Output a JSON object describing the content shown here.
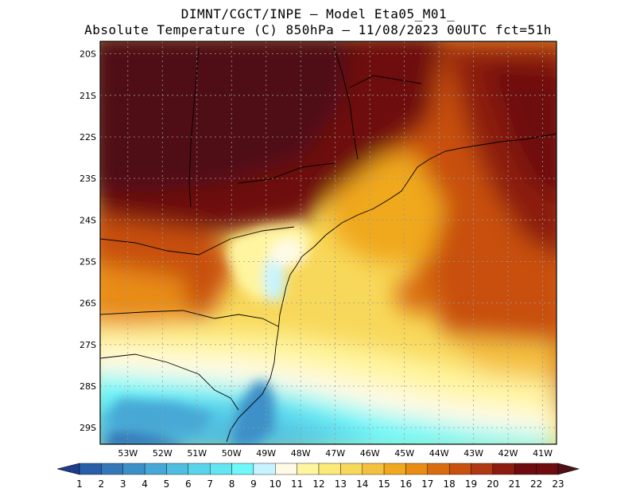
{
  "header": {
    "line1": "DIMNT/CGCT/INPE –  Model Eta05_M01_",
    "line2": "Absolute Temperature (C) 850hPa –  11/08/2023 00UTC fct=51h"
  },
  "axes": {
    "lat_labels": [
      "20S",
      "21S",
      "22S",
      "23S",
      "24S",
      "25S",
      "26S",
      "27S",
      "28S",
      "29S"
    ],
    "lat_values": [
      -20,
      -21,
      -22,
      -23,
      -24,
      -25,
      -26,
      -27,
      -28,
      -29
    ],
    "lon_labels": [
      "53W",
      "52W",
      "51W",
      "50W",
      "49W",
      "48W",
      "47W",
      "46W",
      "45W",
      "44W",
      "43W",
      "42W",
      "41W"
    ],
    "lon_values": [
      -53,
      -52,
      -51,
      -50,
      -49,
      -48,
      -47,
      -46,
      -45,
      -44,
      -43,
      -42,
      -41
    ],
    "lat_range": [
      -29.4,
      -19.7
    ],
    "lon_range": [
      -53.8,
      -40.6
    ],
    "grid": true
  },
  "colorbar": {
    "labels": [
      "1",
      "2",
      "3",
      "4",
      "5",
      "6",
      "7",
      "8",
      "9",
      "10",
      "11",
      "12",
      "13",
      "14",
      "15",
      "16",
      "17",
      "18",
      "19",
      "20",
      "21",
      "22",
      "23"
    ],
    "colors": [
      "#1e3c8c",
      "#2a5ea8",
      "#3478b8",
      "#3c90c8",
      "#46a8d6",
      "#50bee0",
      "#5ad4ea",
      "#64e6f2",
      "#6ef8fa",
      "#c8f4ff",
      "#fffae6",
      "#fff5a0",
      "#fcea78",
      "#f8d85a",
      "#f4c040",
      "#f0a81e",
      "#e88c14",
      "#d86c0e",
      "#c85010",
      "#b03812",
      "#8c1c10",
      "#6e0c10",
      "#501016"
    ]
  }
}
